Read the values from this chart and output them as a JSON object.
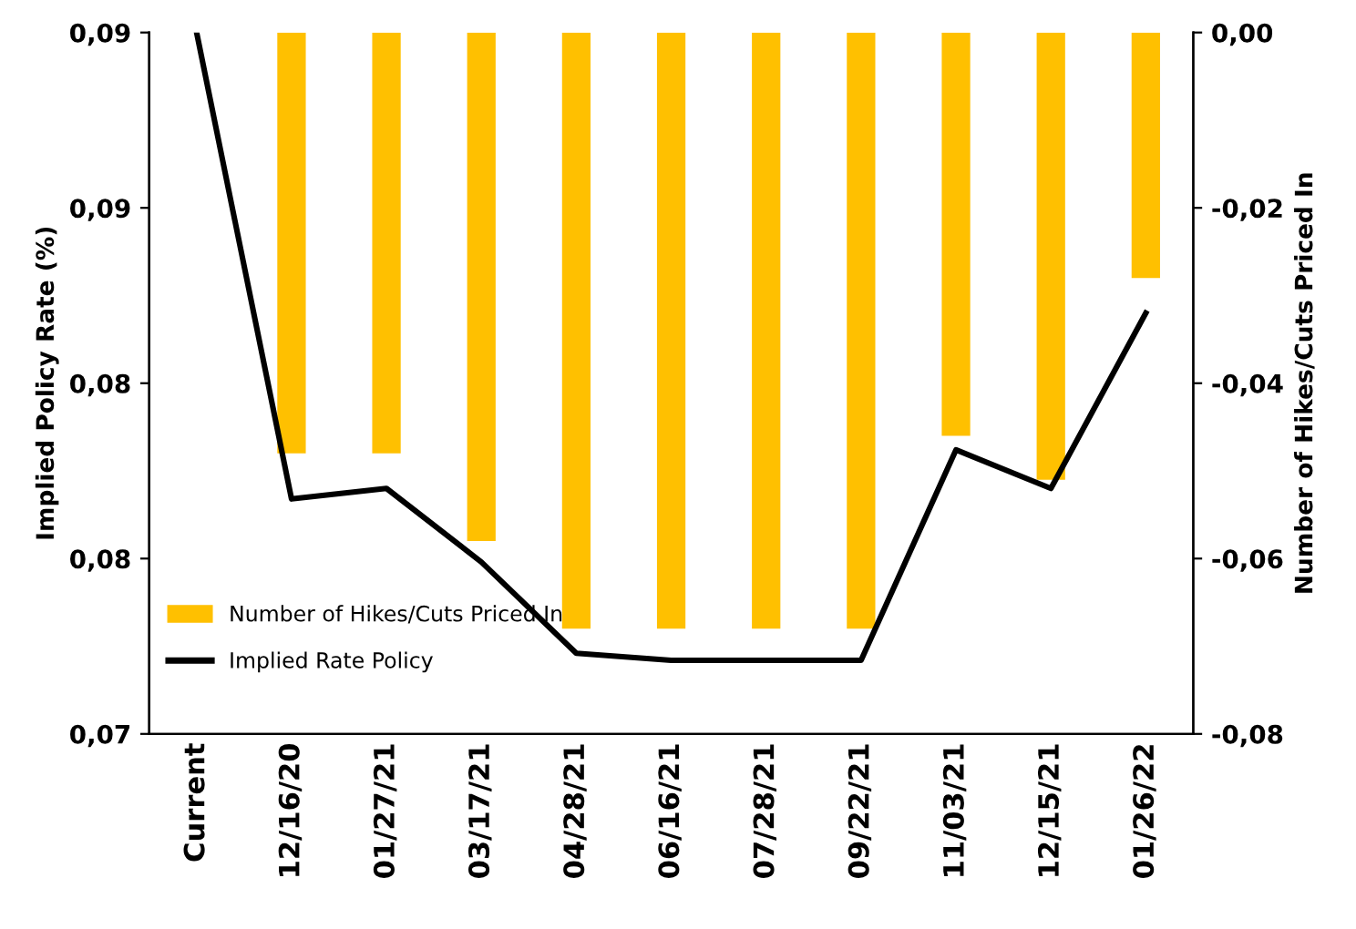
{
  "chart_data": {
    "type": "bar",
    "ylabel": "Implied Policy Rate (%)",
    "y2label": "Number of Hikes/Cuts Priced In",
    "categories": [
      "Current",
      "12/16/20",
      "01/27/21",
      "03/17/21",
      "04/28/21",
      "06/16/21",
      "07/28/21",
      "09/22/21",
      "11/03/21",
      "12/15/21",
      "01/26/22"
    ],
    "series": [
      {
        "name": "Number of Hikes/Cuts Priced In",
        "axis": "y2",
        "color": "#ffc000",
        "values": [
          0,
          -0.048,
          -0.048,
          -0.058,
          -0.068,
          -0.068,
          -0.068,
          -0.068,
          -0.046,
          -0.051,
          -0.028
        ]
      },
      {
        "name": "Implied Rate Policy",
        "type": "line",
        "color": "#000000",
        "values": [
          0.09,
          0.0767,
          0.077,
          0.0749,
          0.0723,
          0.0721,
          0.0721,
          0.0721,
          0.0781,
          0.077,
          0.082
        ]
      }
    ],
    "ylim": [
      0.07,
      0.09
    ],
    "yticks": [
      {
        "value": 0.07,
        "label": "0,07"
      },
      {
        "value": 0.075,
        "label": "0,08"
      },
      {
        "value": 0.08,
        "label": "0,08"
      },
      {
        "value": 0.085,
        "label": "0,09"
      },
      {
        "value": 0.09,
        "label": "0,09"
      }
    ],
    "y2lim": [
      -0.08,
      0
    ],
    "y2ticks": [
      {
        "value": -0.08,
        "label": "-0,08"
      },
      {
        "value": -0.06,
        "label": "-0,06"
      },
      {
        "value": -0.04,
        "label": "-0,04"
      },
      {
        "value": -0.02,
        "label": "-0,02"
      },
      {
        "value": 0,
        "label": "0,00"
      }
    ],
    "legend": "bottom left",
    "grid": false,
    "marker": "none",
    "line_style": "solid"
  }
}
